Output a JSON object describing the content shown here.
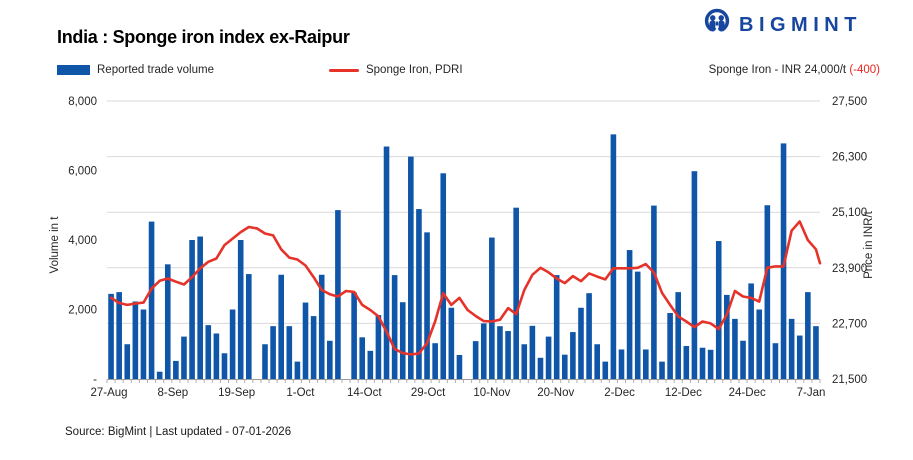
{
  "header": {
    "title": "India : Sponge iron index ex-Raipur",
    "brand": "BIGMINT",
    "brand_color": "#17469e"
  },
  "legend": [
    {
      "label": "Reported trade volume",
      "type": "bar",
      "color": "#0f55a8"
    },
    {
      "label": "Sponge Iron, PDRI",
      "type": "line",
      "color": "#e6332a"
    }
  ],
  "annotation": {
    "prefix": "Sponge Iron - INR 24,000/t ",
    "change": "(-400)",
    "change_color": "#e8261f"
  },
  "footer": {
    "source": "Source: BigMint | Last updated - 07-01-2026"
  },
  "chart_data": {
    "type": "bar+line",
    "title": "India : Sponge iron index ex-Raipur",
    "grid": true,
    "legend_position": "top-left",
    "x_tick_labels": [
      "27-Aug",
      "8-Sep",
      "19-Sep",
      "1-Oct",
      "14-Oct",
      "29-Oct",
      "10-Nov",
      "20-Nov",
      "2-Dec",
      "12-Dec",
      "24-Dec",
      "7-Jan"
    ],
    "left_axis": {
      "label": "Volume in t",
      "min": 0,
      "max": 8000,
      "tick_values": [
        8000,
        6000,
        4000,
        2000,
        0
      ],
      "tick_labels": [
        "8,000",
        "6,000",
        "4,000",
        "2,000",
        "-"
      ]
    },
    "right_axis": {
      "label": "Price in INR/t",
      "min": 21500,
      "max": 27500,
      "tick_values": [
        27500,
        26300,
        25100,
        23900,
        22700,
        21500
      ],
      "tick_labels": [
        "27,500",
        "26,300",
        "25,100",
        "23,900",
        "22,700",
        "21,500"
      ]
    },
    "series": [
      {
        "name": "Reported trade volume",
        "type": "bar",
        "axis": "left",
        "color": "#0f55a8",
        "values": [
          2450,
          2500,
          1000,
          2230,
          2000,
          4530,
          210,
          3300,
          520,
          1220,
          4000,
          4100,
          1550,
          1310,
          740,
          2000,
          4000,
          3020,
          0,
          1000,
          1520,
          3000,
          1520,
          500,
          2200,
          1810,
          3000,
          1100,
          4860,
          0,
          2490,
          1200,
          810,
          1840,
          6690,
          2990,
          2210,
          6400,
          4890,
          4220,
          1030,
          5920,
          2050,
          690,
          0,
          1090,
          1600,
          4070,
          1520,
          1380,
          4930,
          1000,
          1530,
          610,
          1220,
          2990,
          700,
          1350,
          2050,
          2470,
          1000,
          500,
          7040,
          850,
          3710,
          3090,
          850,
          4990,
          500,
          1900,
          2500,
          950,
          5980,
          900,
          840,
          3970,
          2420,
          1730,
          1100,
          2750,
          2000,
          5000,
          1030,
          6780,
          1730,
          1250,
          2500,
          1520
        ]
      },
      {
        "name": "Sponge Iron, PDRI",
        "type": "line",
        "axis": "right",
        "color": "#e6332a",
        "values": [
          23250,
          23140,
          23100,
          23130,
          23150,
          23450,
          23620,
          23670,
          23600,
          23540,
          23700,
          23890,
          24030,
          24100,
          24390,
          24530,
          24670,
          24780,
          24750,
          24640,
          24600,
          24300,
          24120,
          24080,
          23950,
          23700,
          23420,
          23330,
          23280,
          23400,
          23380,
          23100,
          22990,
          22850,
          22520,
          22150,
          22060,
          22030,
          22050,
          22270,
          22740,
          23350,
          23100,
          23250,
          22990,
          22860,
          22750,
          22740,
          22780,
          23030,
          22900,
          23420,
          23750,
          23900,
          23800,
          23670,
          23570,
          23720,
          23610,
          23780,
          23710,
          23650,
          23890,
          23890,
          23890,
          23900,
          23980,
          23800,
          23360,
          23100,
          22850,
          22740,
          22620,
          22740,
          22700,
          22580,
          22890,
          23400,
          23280,
          23250,
          23170,
          23900,
          23930,
          23930,
          24700,
          24900,
          24500,
          24300,
          24000
        ]
      }
    ]
  }
}
